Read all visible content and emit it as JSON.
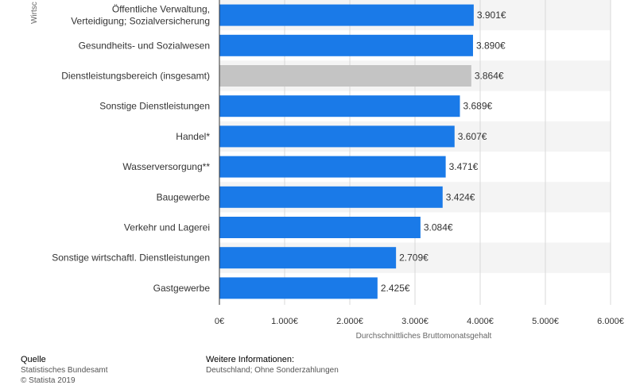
{
  "chart_data": {
    "type": "bar",
    "orientation": "horizontal",
    "categories": [
      [
        "Öffentliche Verwaltung,",
        "Verteidigung; Sozialversicherung"
      ],
      [
        "Gesundheits- und Sozialwesen"
      ],
      [
        "Dienstleistungsbereich (insgesamt)"
      ],
      [
        "Sonstige Dienstleistungen"
      ],
      [
        "Handel*"
      ],
      [
        "Wasserversorgung**"
      ],
      [
        "Baugewerbe"
      ],
      [
        "Verkehr und Lagerei"
      ],
      [
        "Sonstige wirtschaftl. Dienstleistungen"
      ],
      [
        "Gastgewerbe"
      ]
    ],
    "values": [
      3901,
      3890,
      3864,
      3689,
      3607,
      3471,
      3424,
      3084,
      2709,
      2425
    ],
    "value_labels": [
      "3.901€",
      "3.890€",
      "3.864€",
      "3.689€",
      "3.607€",
      "3.471€",
      "3.424€",
      "3.084€",
      "2.709€",
      "2.425€"
    ],
    "highlight_index": 2,
    "xlim": [
      0,
      6000
    ],
    "xticks": [
      0,
      1000,
      2000,
      3000,
      4000,
      5000,
      6000
    ],
    "xtick_labels": [
      "0€",
      "1.000€",
      "2.000€",
      "3.000€",
      "4.000€",
      "5.000€",
      "6.000€"
    ],
    "xlabel": "Durchschnittliches Bruttomonatsgehalt",
    "ylabel": "Wirtsc",
    "grid": true,
    "colors": {
      "bar": "#1a7ae8",
      "highlight": "#c4c4c4",
      "band": "#f4f4f4",
      "grid": "#d9d9d9"
    }
  },
  "footer": {
    "source_title": "Quelle",
    "source_lines": [
      "Statistisches Bundesamt",
      "© Statista 2019"
    ],
    "info_title": "Weitere Informationen:",
    "info_lines": [
      "Deutschland; Ohne Sonderzahlungen"
    ]
  }
}
